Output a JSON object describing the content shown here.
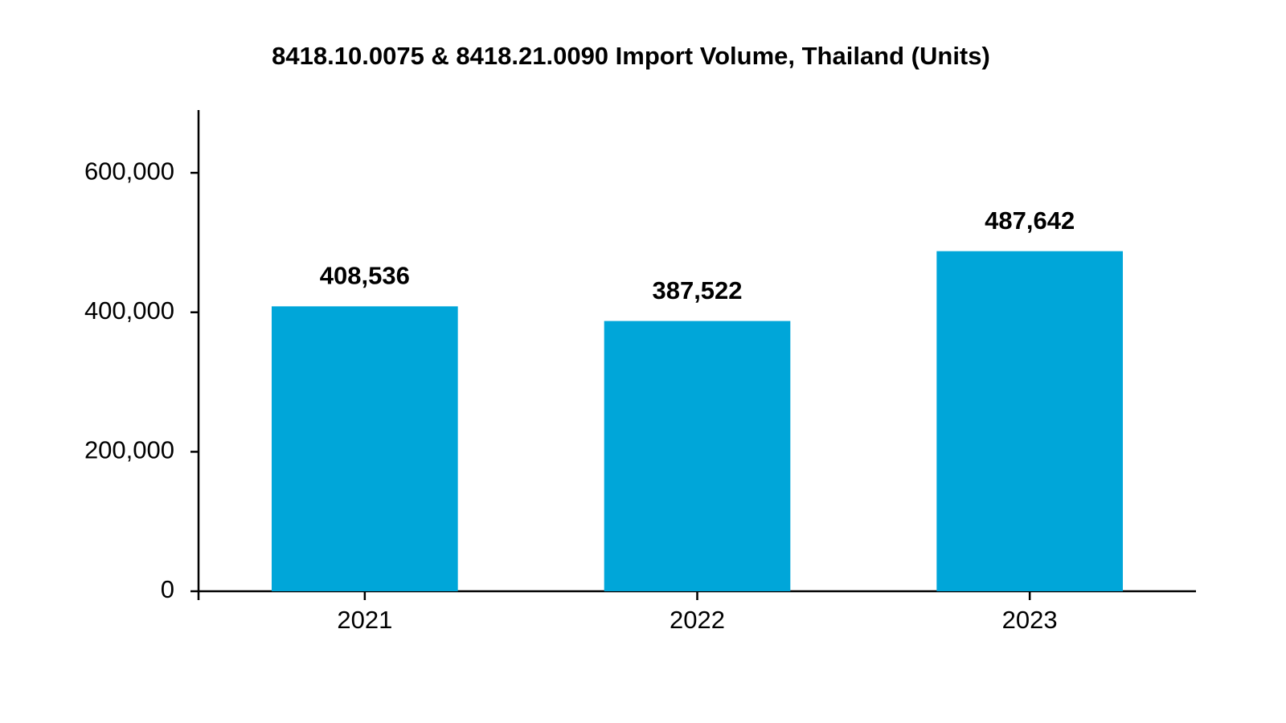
{
  "chart_data": {
    "type": "bar",
    "title": "8418.10.0075 & 8418.21.0090 Import Volume, Thailand (Units)",
    "categories": [
      "2021",
      "2022",
      "2023"
    ],
    "values": [
      408536,
      387522,
      487642
    ],
    "value_labels": [
      "408,536",
      "387,522",
      "487,642"
    ],
    "color": "#00a6d9",
    "ylim": [
      0,
      690000
    ],
    "yticks": [
      0,
      {
        "value": 200000,
        "label": "200,000"
      },
      {
        "value": 400000,
        "label": "400,000"
      },
      {
        "value": 600000,
        "label": "600,000"
      }
    ],
    "grid": false
  }
}
